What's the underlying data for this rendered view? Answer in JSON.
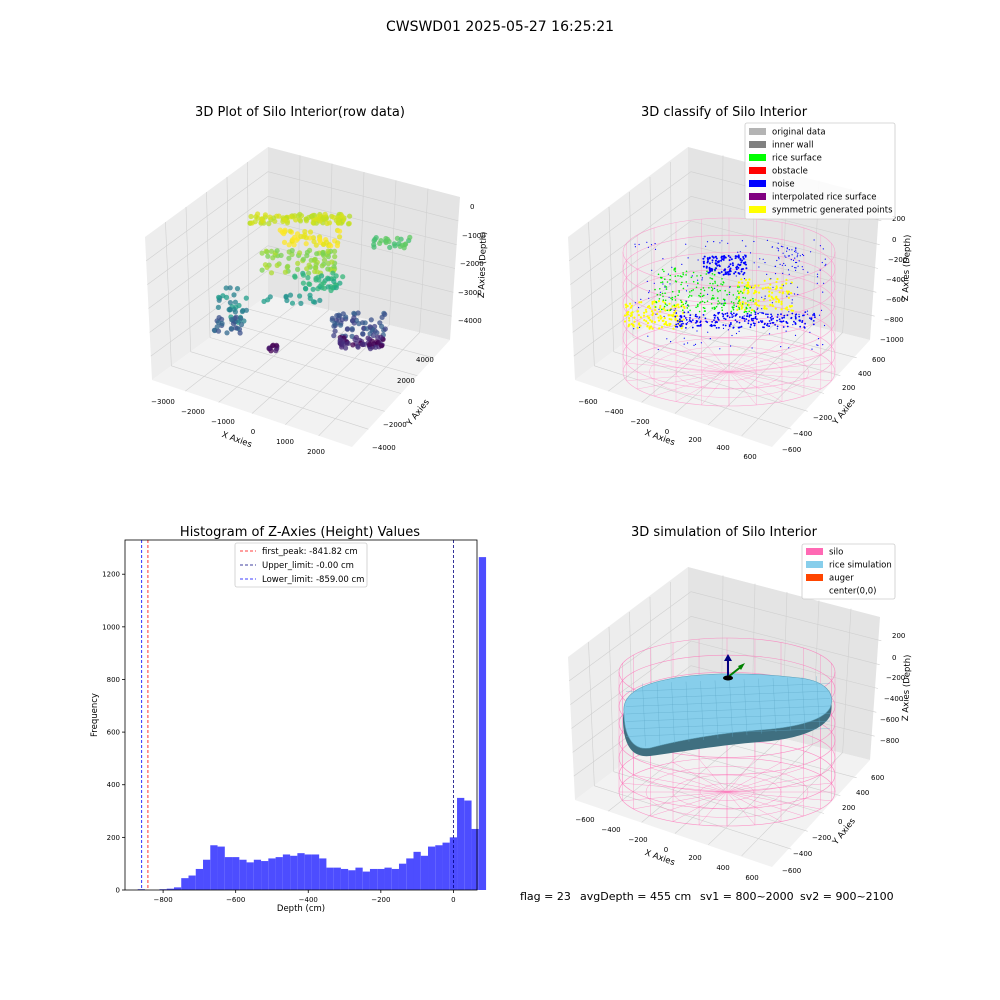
{
  "suptitle": "CWSWD01 2025-05-27 16:25:21",
  "chart_data": [
    {
      "type": "scatter",
      "subtype": "3d",
      "title": "3D Plot of Silo Interior(row data)",
      "xlabel": "X Axies",
      "ylabel": "Y Axies",
      "zlabel": "Z Axies (Depth)",
      "xticks": [
        "−3000",
        "−2000",
        "−1000",
        "0",
        "1000",
        "2000"
      ],
      "yticks": [
        "−4000",
        "−2000",
        "0",
        "2000",
        "4000"
      ],
      "zticks": [
        "−4000",
        "−3000",
        "−2000",
        "−1000",
        "0"
      ],
      "colormap": "viridis"
    },
    {
      "type": "scatter",
      "subtype": "3d",
      "title": "3D classify of Silo Interior",
      "xlabel": "X Axies",
      "ylabel": "Y Axies",
      "zlabel": "Z Axies (Depth)",
      "xticks": [
        "−600",
        "−400",
        "−200",
        "0",
        "200",
        "400",
        "600"
      ],
      "yticks": [
        "−600",
        "−400",
        "−200",
        "0",
        "200",
        "400",
        "600"
      ],
      "zticks": [
        "−1000",
        "−800",
        "−600",
        "−400",
        "−200",
        "0",
        "200"
      ],
      "legend_position": "top-right",
      "legend": [
        {
          "label": "original data",
          "color": "#b4b4b4"
        },
        {
          "label": "inner wall",
          "color": "#808080"
        },
        {
          "label": "rice surface",
          "color": "#00ff00"
        },
        {
          "label": "obstacle",
          "color": "#ff0000"
        },
        {
          "label": "noise",
          "color": "#0000ff"
        },
        {
          "label": "interpolated rice surface",
          "color": "#800080"
        },
        {
          "label": "symmetric generated points",
          "color": "#ffff00"
        }
      ]
    },
    {
      "type": "bar",
      "subtype": "histogram",
      "title": "Histogram of Z-Axies (Height) Values",
      "xlabel": "Depth (cm)",
      "ylabel": "Frequency",
      "xlim": [
        -905,
        65
      ],
      "ylim": [
        0,
        1330
      ],
      "bin_start": -890,
      "bin_width": 20,
      "xticks": [
        {
          "value": -800,
          "label": "−800"
        },
        {
          "value": -600,
          "label": "−600"
        },
        {
          "value": -400,
          "label": "−400"
        },
        {
          "value": -200,
          "label": "−200"
        },
        {
          "value": 0,
          "label": "0"
        }
      ],
      "yticks": [
        {
          "value": 0,
          "label": "0"
        },
        {
          "value": 200,
          "label": "200"
        },
        {
          "value": 400,
          "label": "400"
        },
        {
          "value": 600,
          "label": "600"
        },
        {
          "value": 800,
          "label": "800"
        },
        {
          "value": 1000,
          "label": "1000"
        },
        {
          "value": 1200,
          "label": "1200"
        }
      ],
      "values": [
        0,
        3,
        0,
        0,
        3,
        5,
        10,
        45,
        55,
        80,
        115,
        170,
        165,
        125,
        125,
        115,
        105,
        115,
        110,
        120,
        125,
        135,
        130,
        140,
        135,
        135,
        120,
        85,
        85,
        80,
        75,
        85,
        70,
        80,
        80,
        85,
        80,
        100,
        120,
        145,
        130,
        165,
        170,
        180,
        200,
        350,
        340,
        232,
        1265
      ],
      "bar_color": "#4d4dff",
      "vlines": [
        {
          "x": -841.82,
          "color": "#ff0000",
          "label": "first_peak: -841.82 cm"
        },
        {
          "x": 0,
          "color": "#000080",
          "label": "Upper_limit: -0.00 cm"
        },
        {
          "x": -859.0,
          "color": "#0000ff",
          "label": "Lower_limit: -859.00 cm"
        }
      ]
    },
    {
      "type": "surface",
      "subtype": "3d",
      "title": "3D simulation of Silo Interior",
      "xlabel": "X Axies",
      "ylabel": "Y Axies",
      "zlabel": "Z Axies (Depth)",
      "xticks": [
        "−600",
        "−400",
        "−200",
        "0",
        "200",
        "400",
        "600"
      ],
      "yticks": [
        "−600",
        "−400",
        "−200",
        "0",
        "200",
        "400",
        "600"
      ],
      "zticks": [
        "−800",
        "−600",
        "−400",
        "−200",
        "0",
        "200"
      ],
      "legend_position": "top-right",
      "legend": [
        {
          "label": "silo",
          "color": "#ff69b4"
        },
        {
          "label": "rice simulation",
          "color": "#87ceeb"
        },
        {
          "label": "auger",
          "color": "#ff4500"
        },
        {
          "label": "center(0,0)",
          "color": "#ffffff"
        }
      ]
    }
  ],
  "status": {
    "flag": "flag = 23",
    "avg_depth": "avgDepth = 455 cm",
    "sv1": "sv1 = 800~2000",
    "sv2": "sv2 = 900~2100"
  }
}
